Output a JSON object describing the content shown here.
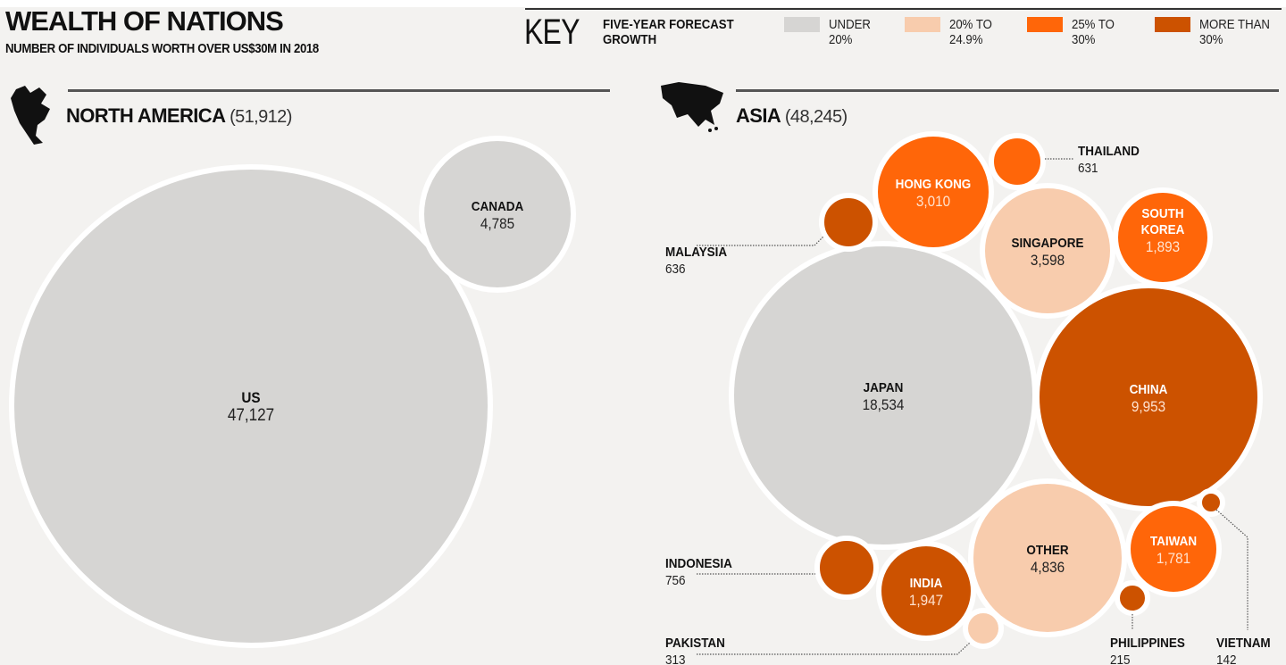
{
  "header": {
    "title": "WEALTH OF NATIONS",
    "subtitle": "NUMBER OF INDIVIDUALS WORTH OVER US$30M IN 2018"
  },
  "key": {
    "title": "KEY",
    "heading": "FIVE-YEAR FORECAST GROWTH",
    "items": [
      {
        "id": "under20",
        "label": "UNDER\n20%",
        "color": "#d6d5d3"
      },
      {
        "id": "20to25",
        "label": "20% TO\n24.9%",
        "color": "#f8ccad"
      },
      {
        "id": "25to30",
        "label": "25% TO\n30%",
        "color": "#ff6609"
      },
      {
        "id": "over30",
        "label": "MORE THAN\n30%",
        "color": "#cc5200"
      }
    ]
  },
  "regions": {
    "north_america": {
      "name": "NORTH AMERICA",
      "total": "(51,912)"
    },
    "asia": {
      "name": "ASIA",
      "total": "(48,245)"
    }
  },
  "chart_data": {
    "type": "bubble",
    "title": "WEALTH OF NATIONS",
    "subtitle": "NUMBER OF INDIVIDUALS WORTH OVER US$30M IN 2018",
    "legend": "top-right",
    "series": [
      {
        "name": "US",
        "region": "north_america",
        "value": 47127,
        "label": "47,127",
        "growth": "under20"
      },
      {
        "name": "CANADA",
        "region": "north_america",
        "value": 4785,
        "label": "4,785",
        "growth": "under20"
      },
      {
        "name": "JAPAN",
        "region": "asia",
        "value": 18534,
        "label": "18,534",
        "growth": "under20"
      },
      {
        "name": "CHINA",
        "region": "asia",
        "value": 9953,
        "label": "9,953",
        "growth": "over30"
      },
      {
        "name": "OTHER",
        "region": "asia",
        "value": 4836,
        "label": "4,836",
        "growth": "20to25"
      },
      {
        "name": "SINGAPORE",
        "region": "asia",
        "value": 3598,
        "label": "3,598",
        "growth": "20to25"
      },
      {
        "name": "HONG KONG",
        "region": "asia",
        "value": 3010,
        "label": "3,010",
        "growth": "25to30"
      },
      {
        "name": "INDIA",
        "region": "asia",
        "value": 1947,
        "label": "1,947",
        "growth": "over30"
      },
      {
        "name": "SOUTH KOREA",
        "region": "asia",
        "value": 1893,
        "label": "1,893",
        "growth": "25to30"
      },
      {
        "name": "TAIWAN",
        "region": "asia",
        "value": 1781,
        "label": "1,781",
        "growth": "25to30"
      },
      {
        "name": "INDONESIA",
        "region": "asia",
        "value": 756,
        "label": "756",
        "growth": "over30"
      },
      {
        "name": "MALAYSIA",
        "region": "asia",
        "value": 636,
        "label": "636",
        "growth": "over30"
      },
      {
        "name": "THAILAND",
        "region": "asia",
        "value": 631,
        "label": "631",
        "growth": "25to30"
      },
      {
        "name": "PAKISTAN",
        "region": "asia",
        "value": 313,
        "label": "313",
        "growth": "20to25"
      },
      {
        "name": "PHILIPPINES",
        "region": "asia",
        "value": 215,
        "label": "215",
        "growth": "over30"
      },
      {
        "name": "VIETNAM",
        "region": "asia",
        "value": 142,
        "label": "142",
        "growth": "over30"
      }
    ]
  }
}
